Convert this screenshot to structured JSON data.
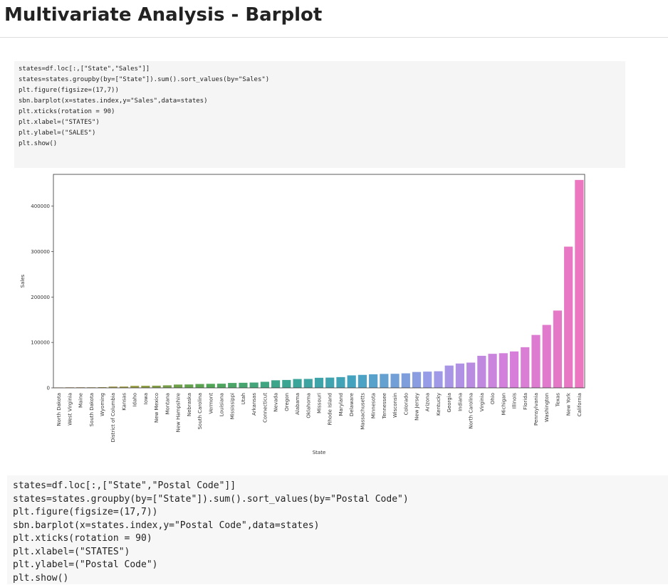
{
  "heading": "Multivariate Analysis - Barplot",
  "cells": [
    {
      "source": [
        "states=df.loc[:,[\"State\",\"Sales\"]]",
        "states=states.groupby(by=[\"State\"]).sum().sort_values(by=\"Sales\")",
        "plt.figure(figsize=(17,7))",
        "sbn.barplot(x=states.index,y=\"Sales\",data=states)",
        "plt.xticks(rotation = 90)",
        "plt.xlabel=(\"STATES\")",
        "plt.ylabel=(\"SALES\")",
        "plt.show()"
      ]
    },
    {
      "source": [
        "states=df.loc[:,[\"State\",\"Postal Code\"]]",
        "states=states.groupby(by=[\"State\"]).sum().sort_values(by=\"Postal Code\")",
        "plt.figure(figsize=(17,7))",
        "sbn.barplot(x=states.index,y=\"Postal Code\",data=states)",
        "plt.xticks(rotation = 90)",
        "plt.xlabel=(\"STATES\")",
        "plt.ylabel=(\"Postal Code\")",
        "plt.show()"
      ]
    }
  ],
  "chart_data": {
    "type": "bar",
    "xlabel": "State",
    "ylabel": "Sales",
    "categories": [
      "North Dakota",
      "West Virginia",
      "Maine",
      "South Dakota",
      "Wyoming",
      "District of Columbia",
      "Kansas",
      "Idaho",
      "Iowa",
      "New Mexico",
      "Montana",
      "New Hampshire",
      "Nebraska",
      "South Carolina",
      "Vermont",
      "Louisiana",
      "Mississippi",
      "Utah",
      "Arkansas",
      "Connecticut",
      "Nevada",
      "Oregon",
      "Alabama",
      "Oklahoma",
      "Missouri",
      "Rhode Island",
      "Maryland",
      "Delaware",
      "Massachusetts",
      "Minnesota",
      "Tennessee",
      "Wisconsin",
      "Colorado",
      "New Jersey",
      "Arizona",
      "Kentucky",
      "Georgia",
      "Indiana",
      "North Carolina",
      "Virginia",
      "Ohio",
      "Michigan",
      "Illinois",
      "Florida",
      "Pennsylvania",
      "Washington",
      "Texas",
      "New York",
      "California"
    ],
    "values": [
      900,
      1200,
      1300,
      1300,
      1600,
      2900,
      2900,
      4400,
      4600,
      4800,
      5600,
      7300,
      7500,
      8500,
      8900,
      9200,
      10800,
      11200,
      11700,
      13400,
      16700,
      17400,
      19500,
      19700,
      22200,
      22600,
      23700,
      27500,
      28600,
      29900,
      30700,
      31000,
      32000,
      35000,
      35800,
      36600,
      49100,
      53600,
      55600,
      70600,
      75000,
      76300,
      80200,
      89500,
      116500,
      138600,
      170200,
      310900,
      457700
    ],
    "palette": [
      "#b8926a",
      "#9a9b3f",
      "#52a553",
      "#3aa58f",
      "#44a3c2",
      "#9a9ce8",
      "#d37fdc",
      "#ec76c0"
    ],
    "ylim": [
      0,
      470000
    ],
    "yticks": [
      0,
      100000,
      200000,
      300000,
      400000
    ]
  }
}
